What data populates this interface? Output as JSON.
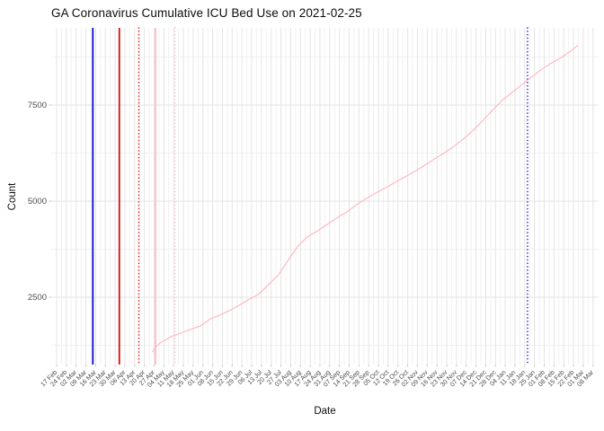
{
  "chart_data": {
    "type": "line",
    "title": "GA Coronavirus Cumulative ICU Bed Use on 2021-02-25",
    "xlabel": "Date",
    "ylabel": "Count",
    "legend": "none",
    "grid": "major+minor",
    "x_axis": {
      "tick_start_date": "2020-02-17",
      "tick_interval_days": 7,
      "tick_labels": [
        "17 Feb",
        "24 Feb",
        "02 Mar",
        "09 Mar",
        "16 Mar",
        "23 Mar",
        "30 Mar",
        "06 Apr",
        "13 Apr",
        "20 Apr",
        "27 Apr",
        "04 May",
        "11 May",
        "18 May",
        "25 May",
        "01 Jun",
        "08 Jun",
        "15 Jun",
        "22 Jun",
        "29 Jun",
        "06 Jul",
        "13 Jul",
        "20 Jul",
        "27 Jul",
        "03 Aug",
        "10 Aug",
        "17 Aug",
        "24 Aug",
        "31 Aug",
        "07 Sep",
        "14 Sep",
        "21 Sep",
        "28 Sep",
        "05 Oct",
        "12 Oct",
        "19 Oct",
        "26 Oct",
        "02 Nov",
        "09 Nov",
        "16 Nov",
        "23 Nov",
        "30 Nov",
        "07 Dec",
        "14 Dec",
        "21 Dec",
        "28 Dec",
        "04 Jan",
        "11 Jan",
        "18 Jan",
        "25 Jan",
        "01 Feb",
        "08 Feb",
        "15 Feb",
        "22 Feb",
        "01 Mar",
        "08 Mar"
      ]
    },
    "y_axis": {
      "tick_values": [
        2500,
        5000,
        7500
      ],
      "tick_labels": [
        "2500",
        "5000",
        "7500"
      ],
      "minor_tick_values": [
        1250,
        3750,
        6250,
        8750
      ],
      "range_approx": [
        700,
        9500
      ]
    },
    "series": [
      {
        "name": "cumulative-icu-bed-use",
        "color": "#ffb6c1",
        "points": [
          [
            "2020-04-26",
            1080
          ],
          [
            "2020-04-28",
            1200
          ],
          [
            "2020-05-02",
            1330
          ],
          [
            "2020-05-09",
            1470
          ],
          [
            "2020-05-16",
            1565
          ],
          [
            "2020-05-23",
            1660
          ],
          [
            "2020-05-30",
            1750
          ],
          [
            "2020-06-06",
            1930
          ],
          [
            "2020-06-13",
            2030
          ],
          [
            "2020-06-20",
            2150
          ],
          [
            "2020-06-27",
            2290
          ],
          [
            "2020-07-04",
            2440
          ],
          [
            "2020-07-11",
            2580
          ],
          [
            "2020-07-18",
            2820
          ],
          [
            "2020-07-25",
            3070
          ],
          [
            "2020-08-01",
            3450
          ],
          [
            "2020-08-08",
            3820
          ],
          [
            "2020-08-15",
            4070
          ],
          [
            "2020-08-22",
            4220
          ],
          [
            "2020-08-29",
            4390
          ],
          [
            "2020-09-05",
            4560
          ],
          [
            "2020-09-12",
            4710
          ],
          [
            "2020-09-19",
            4900
          ],
          [
            "2020-09-26",
            5060
          ],
          [
            "2020-10-03",
            5210
          ],
          [
            "2020-10-10",
            5340
          ],
          [
            "2020-10-17",
            5490
          ],
          [
            "2020-10-24",
            5630
          ],
          [
            "2020-10-31",
            5770
          ],
          [
            "2020-11-07",
            5930
          ],
          [
            "2020-11-14",
            6090
          ],
          [
            "2020-11-21",
            6250
          ],
          [
            "2020-11-28",
            6420
          ],
          [
            "2020-12-05",
            6620
          ],
          [
            "2020-12-12",
            6840
          ],
          [
            "2020-12-19",
            7100
          ],
          [
            "2020-12-26",
            7370
          ],
          [
            "2021-01-02",
            7630
          ],
          [
            "2021-01-09",
            7830
          ],
          [
            "2021-01-16",
            8030
          ],
          [
            "2021-01-23",
            8230
          ],
          [
            "2021-01-30",
            8430
          ],
          [
            "2021-02-06",
            8590
          ],
          [
            "2021-02-13",
            8730
          ],
          [
            "2021-02-20",
            8910
          ],
          [
            "2021-02-25",
            9050
          ]
        ]
      }
    ],
    "vlines": [
      {
        "date": "2020-03-14",
        "color": "#0000cd",
        "style": "solid"
      },
      {
        "date": "2020-04-02",
        "color": "#e00000",
        "style": "solid"
      },
      {
        "date": "2020-04-16",
        "color": "#e00000",
        "style": "dotted"
      },
      {
        "date": "2020-04-28",
        "color": "#ffb6c1",
        "style": "solid"
      },
      {
        "date": "2020-05-12",
        "color": "#ffb6c1",
        "style": "dotted"
      },
      {
        "date": "2021-01-20",
        "color": "#0000cd",
        "style": "dotted"
      }
    ],
    "colors": {
      "background": "#ffffff",
      "major_grid": "#e4e4e4",
      "minor_grid": "#f1f1f1",
      "tick_text": "#4d4d4d",
      "axis_tick_mark": "#c8c8c8",
      "title_text": "#0d0d0d"
    }
  }
}
